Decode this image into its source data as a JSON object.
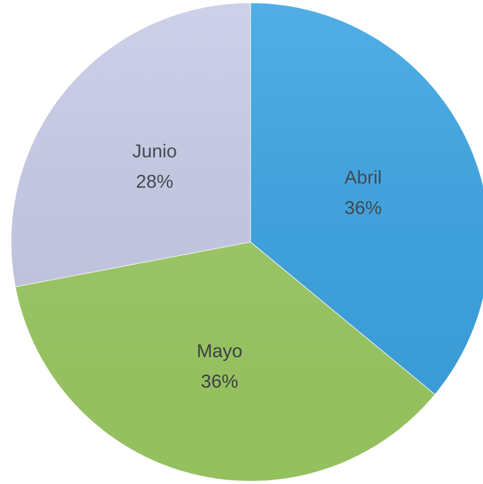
{
  "chart_data": {
    "type": "pie",
    "title": "",
    "categories": [
      "Abril",
      "Mayo",
      "Junio"
    ],
    "values": [
      36,
      36,
      28
    ],
    "labels": [
      "36%",
      "36%",
      "28%"
    ],
    "colors": [
      "#3aa3e2",
      "#9cca63",
      "#c7cae6"
    ],
    "start_angle_deg": 0,
    "direction": "clockwise",
    "legend": "none"
  }
}
